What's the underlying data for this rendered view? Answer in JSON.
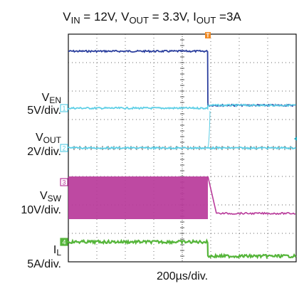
{
  "chart_data": {
    "type": "line",
    "title": {
      "vin_label": "V",
      "vin_sub": "IN",
      "vin_value": " = 12V, ",
      "vout_label": "V",
      "vout_sub": "OUT",
      "vout_value": " = 3.3V, ",
      "iout_label": "I",
      "iout_sub": "OUT",
      "iout_value": " =3A"
    },
    "xlabel": "200µs/div.",
    "x_divisions": 8,
    "y_divisions": 8,
    "grid": true,
    "trigger_marker": "T",
    "trigger_position_div": 4.9,
    "transition_time_div": 4.9,
    "channels": [
      {
        "id": "EN-top",
        "channel_number": "",
        "color": "#2b3f9e",
        "levels_div": [
          0.6,
          2.5
        ],
        "noise": "low"
      },
      {
        "id": "EN",
        "label": "V",
        "sub": "EN",
        "scale": "5V/div.",
        "channel_number": "1",
        "color": "#5ecfe6",
        "levels_div": [
          2.6,
          2.5
        ],
        "noise": "low"
      },
      {
        "id": "OUT",
        "label": "V",
        "sub": "OUT",
        "scale": "2V/div.",
        "channel_number": "2",
        "color": "#5ecfe6",
        "levels_div": [
          4.0,
          4.0
        ],
        "noise": "low",
        "grid_aligned": true
      },
      {
        "id": "SW",
        "label": "V",
        "sub": "SW",
        "scale": "10V/div.",
        "channel_number": "3",
        "color": "#b83a9a",
        "levels_div": [
          5.2,
          6.3
        ],
        "band_top_div": 5.0,
        "band_bottom_div": 6.5,
        "switching": true,
        "noise": "medium"
      },
      {
        "id": "IL",
        "label": "I",
        "sub": "L",
        "scale": "5A/div.",
        "channel_number": "4",
        "color": "#55b53a",
        "levels_div": [
          7.3,
          7.8
        ],
        "noise": "medium"
      }
    ]
  }
}
